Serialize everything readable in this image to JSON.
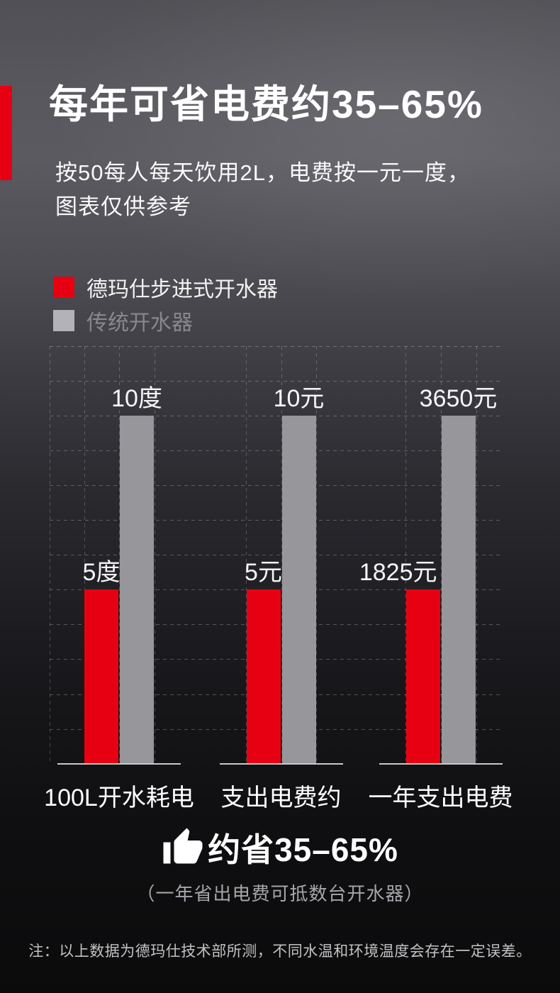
{
  "header": {
    "title": "每年可省电费约35–65%",
    "subtitle_line1": "按50每人每天饮用2L，电费按一元一度，",
    "subtitle_line2": "图表仅供参考"
  },
  "legend": [
    {
      "label": "德玛仕步进式开水器",
      "color": "#e60012"
    },
    {
      "label": "传统开水器",
      "color": "#b3b2b6"
    }
  ],
  "chart_data": {
    "type": "bar",
    "categories": [
      "100L开水耗电",
      "支出电费约",
      "一年支出电费"
    ],
    "series": [
      {
        "name": "德玛仕步进式开水器",
        "color": "#e70012",
        "values": [
          5,
          5,
          1825
        ],
        "value_labels": [
          "5度",
          "5元",
          "1825元"
        ]
      },
      {
        "name": "传统开水器",
        "color": "#97969b",
        "values": [
          10,
          10,
          3650
        ],
        "value_labels": [
          "10度",
          "10元",
          "3650元"
        ]
      }
    ],
    "grid": "dashed",
    "legend_position": "top-left",
    "baseline_color": "#c9c9cb"
  },
  "summary": {
    "icon": "thumbs-up-icon",
    "headline": "约省35–65%",
    "subline": "（一年省出电费可抵数台开水器）"
  },
  "footnote": "注：以上数据为德玛仕技术部所测，不同水温和环境温度会存在一定误差。"
}
